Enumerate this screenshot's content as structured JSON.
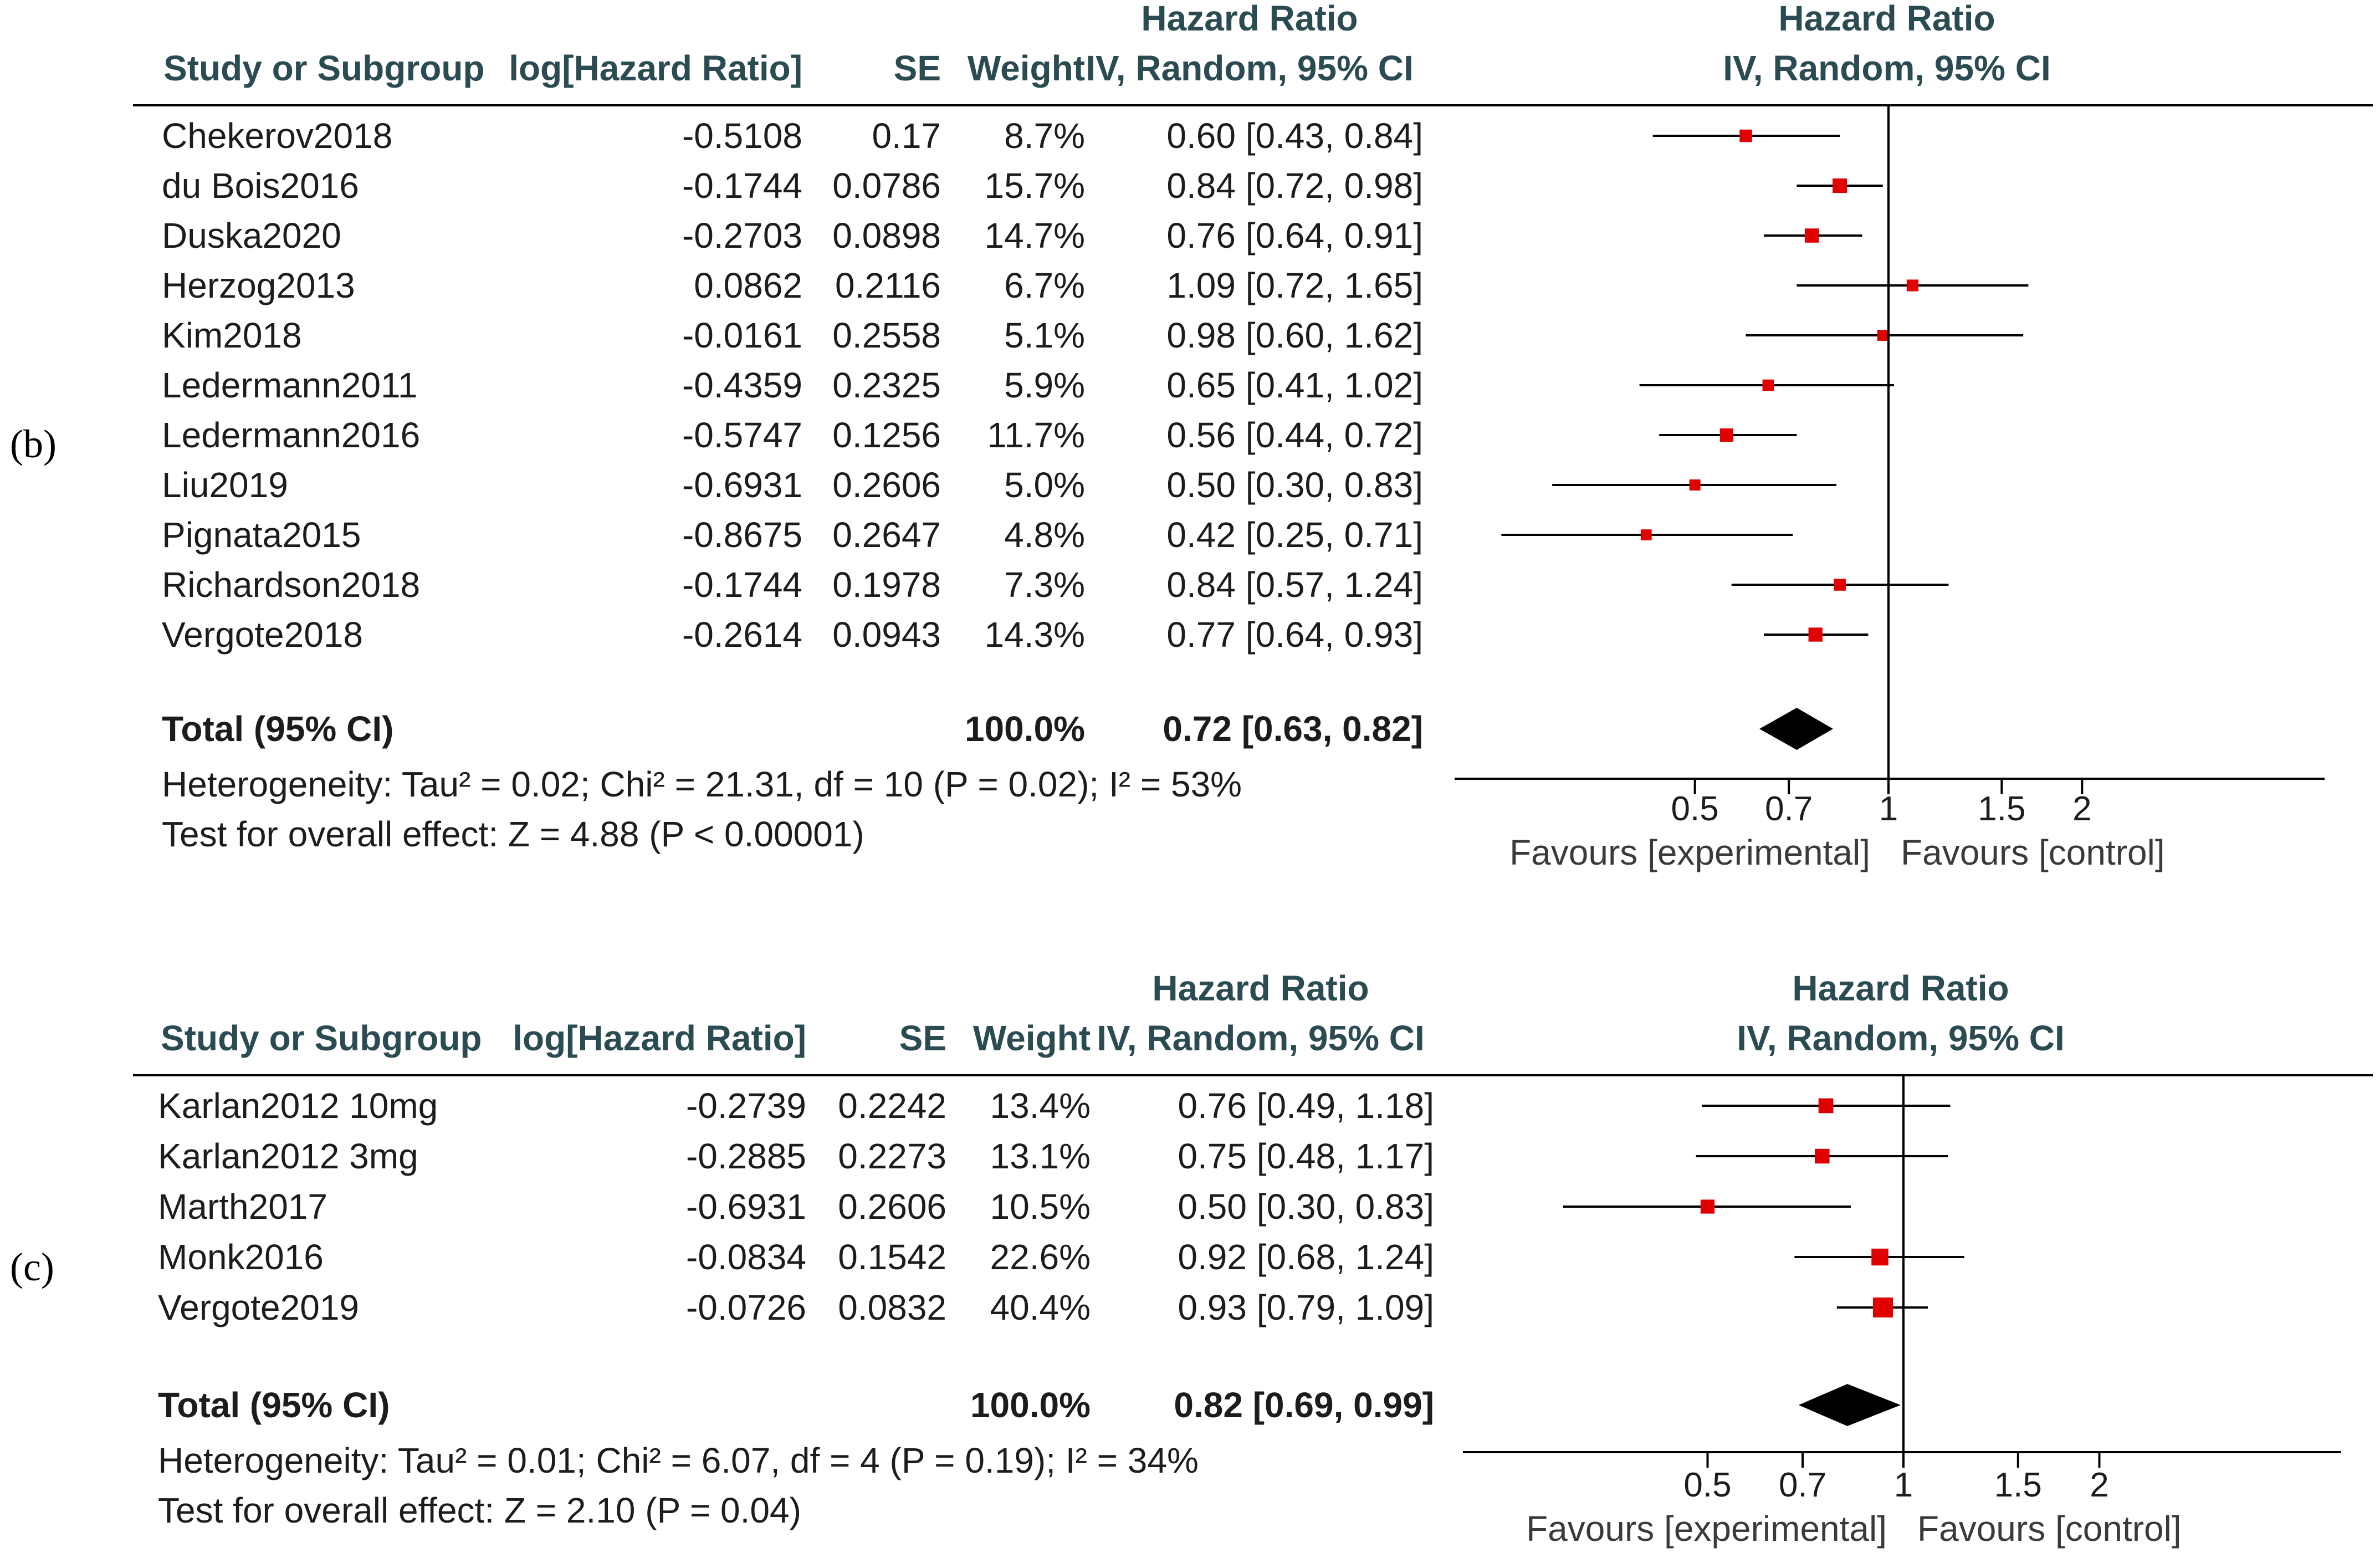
{
  "chart_data": [
    {
      "type": "forest",
      "panel_label": "(b)",
      "header": {
        "study_col": "Study or Subgroup",
        "loghr_col": "log[Hazard Ratio]",
        "se_col": "SE",
        "weight_col": "Weight",
        "ci_col_line1": "Hazard Ratio",
        "ci_col_line2": "IV, Random, 95% CI",
        "plot_col_line1": "Hazard Ratio",
        "plot_col_line2": "IV, Random, 95% CI"
      },
      "studies": [
        {
          "name": "Chekerov2018",
          "loghr": "-0.5108",
          "se": "0.17",
          "weight": "8.7%",
          "ci_text": "0.60 [0.43, 0.84]",
          "hr": 0.6,
          "lo": 0.43,
          "hi": 0.84,
          "w": 8.7
        },
        {
          "name": "du Bois2016",
          "loghr": "-0.1744",
          "se": "0.0786",
          "weight": "15.7%",
          "ci_text": "0.84 [0.72, 0.98]",
          "hr": 0.84,
          "lo": 0.72,
          "hi": 0.98,
          "w": 15.7
        },
        {
          "name": "Duska2020",
          "loghr": "-0.2703",
          "se": "0.0898",
          "weight": "14.7%",
          "ci_text": "0.76 [0.64, 0.91]",
          "hr": 0.76,
          "lo": 0.64,
          "hi": 0.91,
          "w": 14.7
        },
        {
          "name": "Herzog2013",
          "loghr": "0.0862",
          "se": "0.2116",
          "weight": "6.7%",
          "ci_text": "1.09 [0.72, 1.65]",
          "hr": 1.09,
          "lo": 0.72,
          "hi": 1.65,
          "w": 6.7
        },
        {
          "name": "Kim2018",
          "loghr": "-0.0161",
          "se": "0.2558",
          "weight": "5.1%",
          "ci_text": "0.98 [0.60, 1.62]",
          "hr": 0.98,
          "lo": 0.6,
          "hi": 1.62,
          "w": 5.1
        },
        {
          "name": "Ledermann2011",
          "loghr": "-0.4359",
          "se": "0.2325",
          "weight": "5.9%",
          "ci_text": "0.65 [0.41, 1.02]",
          "hr": 0.65,
          "lo": 0.41,
          "hi": 1.02,
          "w": 5.9
        },
        {
          "name": "Ledermann2016",
          "loghr": "-0.5747",
          "se": "0.1256",
          "weight": "11.7%",
          "ci_text": "0.56 [0.44, 0.72]",
          "hr": 0.56,
          "lo": 0.44,
          "hi": 0.72,
          "w": 11.7
        },
        {
          "name": "Liu2019",
          "loghr": "-0.6931",
          "se": "0.2606",
          "weight": "5.0%",
          "ci_text": "0.50 [0.30, 0.83]",
          "hr": 0.5,
          "lo": 0.3,
          "hi": 0.83,
          "w": 5.0
        },
        {
          "name": "Pignata2015",
          "loghr": "-0.8675",
          "se": "0.2647",
          "weight": "4.8%",
          "ci_text": "0.42 [0.25, 0.71]",
          "hr": 0.42,
          "lo": 0.25,
          "hi": 0.71,
          "w": 4.8
        },
        {
          "name": "Richardson2018",
          "loghr": "-0.1744",
          "se": "0.1978",
          "weight": "7.3%",
          "ci_text": "0.84 [0.57, 1.24]",
          "hr": 0.84,
          "lo": 0.57,
          "hi": 1.24,
          "w": 7.3
        },
        {
          "name": "Vergote2018",
          "loghr": "-0.2614",
          "se": "0.0943",
          "weight": "14.3%",
          "ci_text": "0.77 [0.64, 0.93]",
          "hr": 0.77,
          "lo": 0.64,
          "hi": 0.93,
          "w": 14.3
        }
      ],
      "total": {
        "label": "Total (95% CI)",
        "weight": "100.0%",
        "ci_text": "0.72 [0.63, 0.82]",
        "hr": 0.72,
        "lo": 0.63,
        "hi": 0.82
      },
      "heterogeneity": "Heterogeneity: Tau² = 0.02; Chi² = 21.31, df = 10 (P = 0.02); I² = 53%",
      "overall_effect": "Test for overall effect: Z = 4.88 (P < 0.00001)",
      "axis": {
        "scale": "log",
        "ticks": [
          0.5,
          0.7,
          1,
          1.5,
          2
        ],
        "tick_labels": [
          "0.5",
          "0.7",
          "1",
          "1.5",
          "2"
        ],
        "xlim": [
          0.2,
          5
        ]
      },
      "favours_left": "Favours [experimental]",
      "favours_right": "Favours [control]"
    },
    {
      "type": "forest",
      "panel_label": "(c)",
      "header": {
        "study_col": "Study or Subgroup",
        "loghr_col": "log[Hazard Ratio]",
        "se_col": "SE",
        "weight_col": "Weight",
        "ci_col_line1": "Hazard Ratio",
        "ci_col_line2": "IV, Random, 95% CI",
        "plot_col_line1": "Hazard Ratio",
        "plot_col_line2": "IV, Random, 95% CI"
      },
      "studies": [
        {
          "name": "Karlan2012 10mg",
          "loghr": "-0.2739",
          "se": "0.2242",
          "weight": "13.4%",
          "ci_text": "0.76 [0.49, 1.18]",
          "hr": 0.76,
          "lo": 0.49,
          "hi": 1.18,
          "w": 13.4
        },
        {
          "name": "Karlan2012 3mg",
          "loghr": "-0.2885",
          "se": "0.2273",
          "weight": "13.1%",
          "ci_text": "0.75 [0.48, 1.17]",
          "hr": 0.75,
          "lo": 0.48,
          "hi": 1.17,
          "w": 13.1
        },
        {
          "name": "Marth2017",
          "loghr": "-0.6931",
          "se": "0.2606",
          "weight": "10.5%",
          "ci_text": "0.50 [0.30, 0.83]",
          "hr": 0.5,
          "lo": 0.3,
          "hi": 0.83,
          "w": 10.5
        },
        {
          "name": "Monk2016",
          "loghr": "-0.0834",
          "se": "0.1542",
          "weight": "22.6%",
          "ci_text": "0.92 [0.68, 1.24]",
          "hr": 0.92,
          "lo": 0.68,
          "hi": 1.24,
          "w": 22.6
        },
        {
          "name": "Vergote2019",
          "loghr": "-0.0726",
          "se": "0.0832",
          "weight": "40.4%",
          "ci_text": "0.93 [0.79, 1.09]",
          "hr": 0.93,
          "lo": 0.79,
          "hi": 1.09,
          "w": 40.4
        }
      ],
      "total": {
        "label": "Total (95% CI)",
        "weight": "100.0%",
        "ci_text": "0.82 [0.69, 0.99]",
        "hr": 0.82,
        "lo": 0.69,
        "hi": 0.99
      },
      "heterogeneity": "Heterogeneity: Tau² = 0.01; Chi² = 6.07, df = 4 (P = 0.19); I² = 34%",
      "overall_effect": "Test for overall effect: Z = 2.10 (P = 0.04)",
      "axis": {
        "scale": "log",
        "ticks": [
          0.5,
          0.7,
          1,
          1.5,
          2
        ],
        "tick_labels": [
          "0.5",
          "0.7",
          "1",
          "1.5",
          "2"
        ],
        "xlim": [
          0.2,
          5
        ]
      },
      "favours_left": "Favours [experimental]",
      "favours_right": "Favours [control]"
    }
  ],
  "colors": {
    "marker": "#e00000",
    "text": "#1c1c1c",
    "header": "#2b4b52",
    "line": "#000000"
  }
}
